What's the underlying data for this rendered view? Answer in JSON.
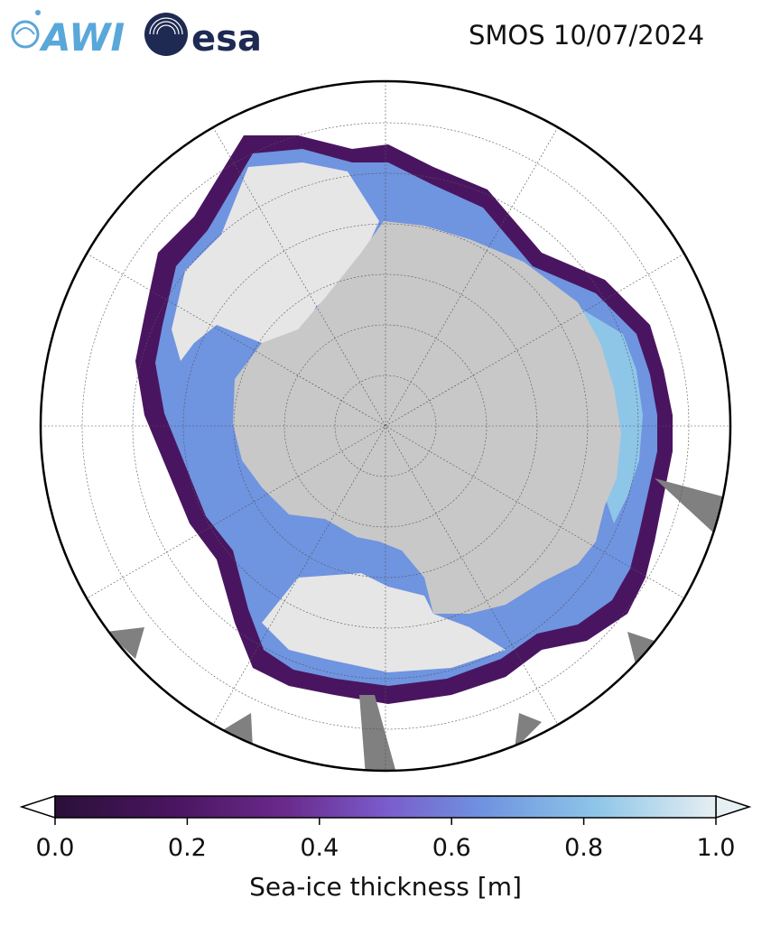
{
  "header": {
    "title": "SMOS 10/07/2024",
    "logo_left_text": "AWI",
    "logo_right_text": "esa"
  },
  "map": {
    "projection": "south-polar-stereographic",
    "region": "Antarctica sea-ice",
    "graticule": true,
    "colors": {
      "land": "#c8c8c8",
      "missing": "#808080",
      "thick_ice": "#e6e6e6",
      "outline": "#000000"
    }
  },
  "colorbar": {
    "label": "Sea-ice thickness [m]",
    "range": [
      0.0,
      1.0
    ],
    "ticks": [
      "0.0",
      "0.2",
      "0.4",
      "0.6",
      "0.8",
      "1.0"
    ],
    "extend": "both",
    "colors": [
      "#2a1038",
      "#4a1560",
      "#6a2a8c",
      "#7a5ccc",
      "#6f94e0",
      "#8ec6e8",
      "#e6eff2"
    ]
  }
}
